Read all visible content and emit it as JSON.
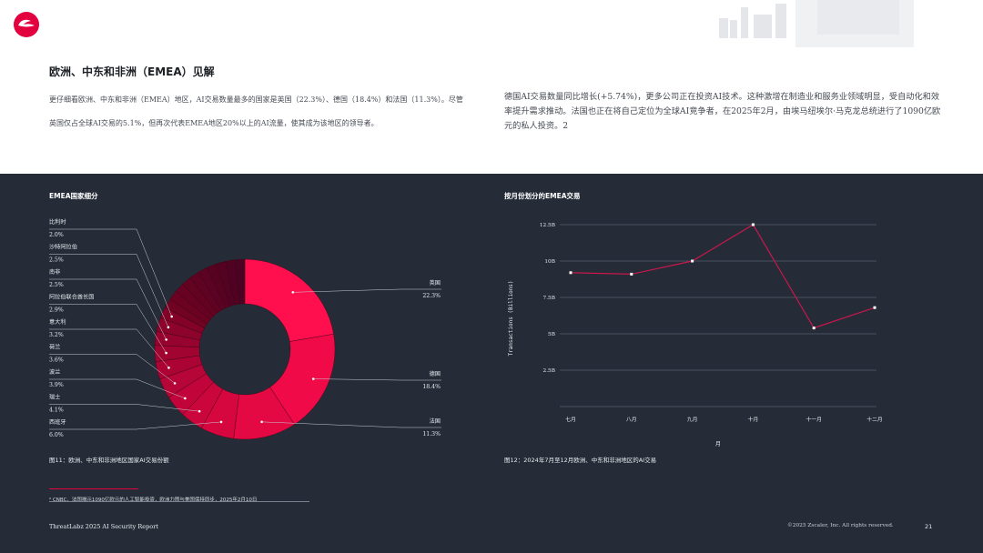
{
  "header": {
    "section_title": "欧洲、中东和非洲（EMEA）见解",
    "left_paragraph": "更仔细看欧洲、中东和非洲（EMEA）地区，AI交易数量最多的国家是英国（22.3%）、德国（18.4%）和法国（11.3%）。尽管英国仅占全球AI交易的5.1%，但再次代表EMEA地区20%以上的AI流量，使其成为该地区的领导者。",
    "right_paragraph": "德国AI交易数量同比增长(+5.74%)，更多公司正在投资AI技术。这种激增在制造业和服务业领域明显，受自动化和效率提升需求推动。法国也正在将自己定位为全球AI竞争者，在2025年2月，由埃马纽埃尔·马克龙总统进行了1090亿欧元的私人投资。2"
  },
  "colors": {
    "accent": "#e2003f",
    "dark_bg": "#252c38",
    "grid": "#5b6373",
    "line": "#c8174a"
  },
  "donut": {
    "title": "EMEA国家细分",
    "caption": "图11：欧洲、中东和非洲地区国家AI交易份额",
    "left_labels": [
      {
        "name": "比利时",
        "value": "2.0%"
      },
      {
        "name": "沙特阿拉伯",
        "value": "2.5%"
      },
      {
        "name": "南非",
        "value": "2.5%"
      },
      {
        "name": "阿拉伯联合酋长国",
        "value": "2.9%"
      },
      {
        "name": "意大利",
        "value": "3.2%"
      },
      {
        "name": "荷兰",
        "value": "3.6%"
      },
      {
        "name": "波兰",
        "value": "3.9%"
      },
      {
        "name": "瑞士",
        "value": "4.1%"
      },
      {
        "name": "西班牙",
        "value": "6.0%"
      }
    ],
    "right_labels": [
      {
        "name": "英国",
        "value": "22.3%"
      },
      {
        "name": "德国",
        "value": "18.4%"
      },
      {
        "name": "法国",
        "value": "11.3%"
      }
    ]
  },
  "chart_data": [
    {
      "type": "pie",
      "title": "EMEA国家细分",
      "categories": [
        "英国",
        "德国",
        "法国",
        "西班牙",
        "瑞士",
        "波兰",
        "荷兰",
        "意大利",
        "阿拉伯联合酋长国",
        "南非",
        "沙特阿拉伯",
        "比利时"
      ],
      "values": [
        22.3,
        18.4,
        11.3,
        6.0,
        4.1,
        3.9,
        3.6,
        3.2,
        2.9,
        2.5,
        2.5,
        2.0
      ]
    },
    {
      "type": "line",
      "title": "按月份划分的EMEA交易",
      "xlabel": "月",
      "ylabel": "Transactions (Billions)",
      "categories": [
        "七月",
        "八月",
        "九月",
        "十月",
        "十一月",
        "十二月"
      ],
      "values": [
        9.2,
        9.1,
        10.0,
        12.5,
        5.4,
        6.8
      ],
      "y_ticks": [
        "2.5B",
        "5B",
        "7.5B",
        "10B",
        "12.5B"
      ],
      "ylim": [
        0,
        12.5
      ],
      "grid": true
    }
  ],
  "line": {
    "title": "按月份划分的EMEA交易",
    "caption": "图12：2024年7月至12月欧洲、中东和非洲地区的AI交易",
    "xlabel": "月",
    "ylabel": "Transactions (Billions)"
  },
  "footnote": "² CNBC，法国揭示1090亿欧元的人工智能投资，欧洲力图与美国保持同步，2025年2月10日",
  "footer": {
    "left": "ThreatLabz 2025 AI Security Report",
    "right": "©2025 Zscaler, Inc. All rights reserved.",
    "page": "21"
  }
}
